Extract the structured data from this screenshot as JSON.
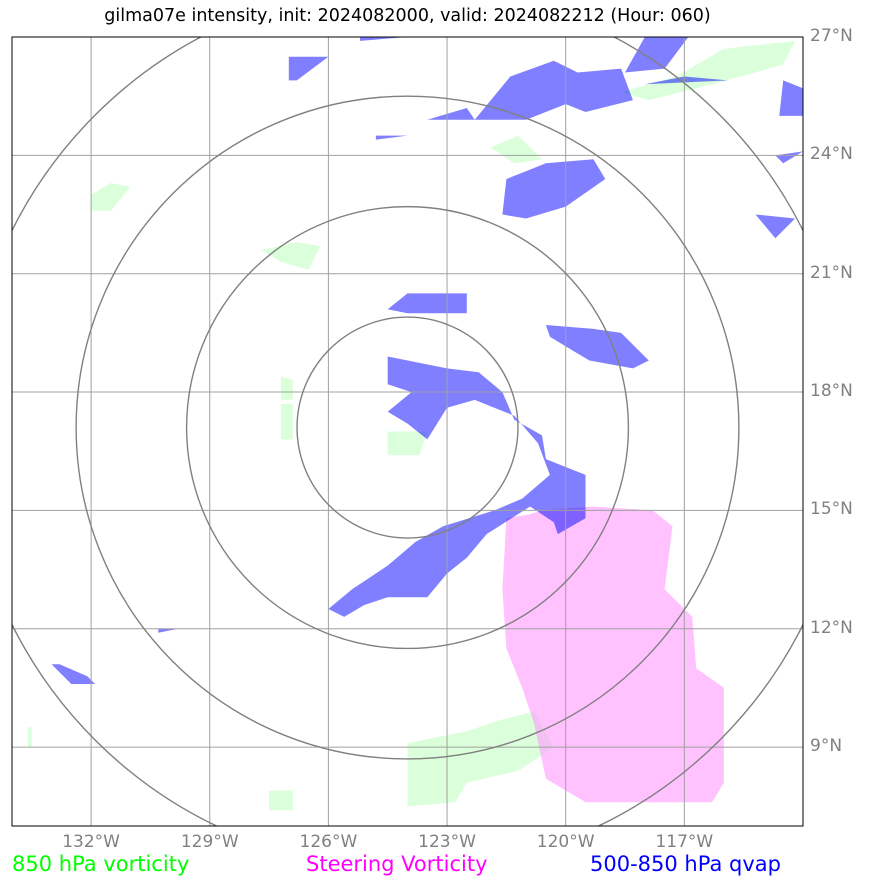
{
  "title": "gilma07e intensity, init: 2024082000, valid: 2024082212 (Hour: 060)",
  "map": {
    "lon_min": -134,
    "lon_max": -114,
    "lat_min": 7,
    "lat_max": 27,
    "lat_ticks": [
      {
        "value": 27,
        "label": "27°N"
      },
      {
        "value": 24,
        "label": "24°N"
      },
      {
        "value": 21,
        "label": "21°N"
      },
      {
        "value": 18,
        "label": "18°N"
      },
      {
        "value": 15,
        "label": "15°N"
      },
      {
        "value": 12,
        "label": "12°N"
      },
      {
        "value": 9,
        "label": "9°N"
      }
    ],
    "lon_ticks": [
      {
        "value": -132,
        "label": "132°W"
      },
      {
        "value": -129,
        "label": "129°W"
      },
      {
        "value": -126,
        "label": "126°W"
      },
      {
        "value": -123,
        "label": "123°W"
      },
      {
        "value": -120,
        "label": "120°W"
      },
      {
        "value": -117,
        "label": "117°W"
      }
    ],
    "grid": true,
    "range_rings": {
      "center_lon": -124.0,
      "center_lat": 17.1,
      "radii_deg": [
        2.8,
        5.6,
        8.4,
        11.2
      ]
    },
    "colors": {
      "vort850": "#ccffcc",
      "steering": "#ff99ff",
      "qvap": "#0000ff",
      "grid": "#a0a0a0",
      "rings": "#808080"
    },
    "fields": {
      "vort850": [
        [
          [
            -117.2,
            26.0
          ],
          [
            -116.0,
            26.7
          ],
          [
            -114.2,
            26.9
          ],
          [
            -114.5,
            26.3
          ],
          [
            -116.3,
            25.8
          ],
          [
            -117.9,
            25.4
          ],
          [
            -118.6,
            25.6
          ]
        ],
        [
          [
            -121.2,
            24.5
          ],
          [
            -120.6,
            23.9
          ],
          [
            -121.3,
            23.8
          ],
          [
            -121.9,
            24.2
          ]
        ],
        [
          [
            -124.0,
            9.1
          ],
          [
            -122.5,
            9.4
          ],
          [
            -121.6,
            9.7
          ],
          [
            -120.8,
            9.9
          ],
          [
            -120.3,
            9.0
          ],
          [
            -121.2,
            8.4
          ],
          [
            -122.5,
            8.1
          ],
          [
            -122.8,
            7.6
          ],
          [
            -124.0,
            7.5
          ]
        ],
        [
          [
            -127.2,
            17.7
          ],
          [
            -126.9,
            17.7
          ],
          [
            -126.9,
            16.8
          ],
          [
            -127.2,
            16.8
          ]
        ],
        [
          [
            -127.2,
            18.4
          ],
          [
            -126.9,
            18.3
          ],
          [
            -126.9,
            17.8
          ],
          [
            -127.2,
            17.8
          ]
        ],
        [
          [
            -124.5,
            17.0
          ],
          [
            -123.5,
            17.0
          ],
          [
            -123.7,
            16.4
          ],
          [
            -124.5,
            16.4
          ]
        ],
        [
          [
            -127.7,
            21.6
          ],
          [
            -126.8,
            21.8
          ],
          [
            -126.2,
            21.7
          ],
          [
            -126.5,
            21.1
          ],
          [
            -127.2,
            21.3
          ]
        ],
        [
          [
            -132.0,
            23.0
          ],
          [
            -131.5,
            23.3
          ],
          [
            -131.0,
            23.2
          ],
          [
            -131.5,
            22.6
          ],
          [
            -132.0,
            22.6
          ]
        ],
        [
          [
            -127.5,
            7.9
          ],
          [
            -126.9,
            7.9
          ],
          [
            -126.9,
            7.4
          ],
          [
            -127.5,
            7.4
          ]
        ],
        [
          [
            -133.6,
            9.5
          ],
          [
            -133.5,
            9.5
          ],
          [
            -133.5,
            9.0
          ],
          [
            -133.6,
            9.0
          ]
        ]
      ],
      "steering": [
        [
          [
            -121.5,
            14.8
          ],
          [
            -120.9,
            14.9
          ],
          [
            -120.6,
            15.0
          ],
          [
            -119.3,
            15.1
          ],
          [
            -117.8,
            15.0
          ],
          [
            -117.3,
            14.6
          ],
          [
            -117.5,
            13.0
          ],
          [
            -116.8,
            12.3
          ],
          [
            -116.7,
            11.0
          ],
          [
            -116.0,
            10.5
          ],
          [
            -116.0,
            8.1
          ],
          [
            -116.3,
            7.6
          ],
          [
            -119.5,
            7.6
          ],
          [
            -120.5,
            8.2
          ],
          [
            -120.8,
            9.6
          ],
          [
            -121.1,
            10.5
          ],
          [
            -121.5,
            11.5
          ],
          [
            -121.6,
            13.0
          ]
        ]
      ],
      "qvap": [
        [
          [
            -123.0,
            18.6
          ],
          [
            -122.2,
            18.5
          ],
          [
            -121.6,
            18.0
          ],
          [
            -121.3,
            17.3
          ],
          [
            -120.6,
            16.9
          ],
          [
            -120.5,
            16.3
          ],
          [
            -119.5,
            15.9
          ],
          [
            -119.5,
            14.8
          ],
          [
            -120.2,
            14.4
          ],
          [
            -120.3,
            14.7
          ],
          [
            -120.9,
            15.1
          ],
          [
            -122.0,
            14.4
          ],
          [
            -122.5,
            13.8
          ],
          [
            -123.0,
            13.4
          ],
          [
            -123.5,
            12.8
          ],
          [
            -124.5,
            12.8
          ],
          [
            -125.1,
            12.6
          ],
          [
            -125.6,
            12.3
          ],
          [
            -126.0,
            12.5
          ],
          [
            -125.4,
            13.0
          ],
          [
            -124.5,
            13.6
          ],
          [
            -123.8,
            14.2
          ],
          [
            -123.1,
            14.6
          ],
          [
            -121.8,
            15.0
          ],
          [
            -121.1,
            15.3
          ],
          [
            -120.4,
            15.9
          ],
          [
            -120.7,
            16.7
          ],
          [
            -121.3,
            17.4
          ],
          [
            -122.3,
            17.8
          ],
          [
            -123.0,
            17.6
          ],
          [
            -123.5,
            16.8
          ],
          [
            -124.0,
            17.2
          ],
          [
            -124.5,
            17.5
          ],
          [
            -123.9,
            18.0
          ],
          [
            -124.5,
            18.2
          ],
          [
            -124.5,
            18.9
          ]
        ],
        [
          [
            -124.0,
            20.5
          ],
          [
            -122.5,
            20.5
          ],
          [
            -122.5,
            20.0
          ],
          [
            -124.0,
            20.0
          ],
          [
            -124.5,
            20.1
          ]
        ],
        [
          [
            -120.5,
            19.7
          ],
          [
            -119.3,
            19.6
          ],
          [
            -118.6,
            19.5
          ],
          [
            -117.9,
            18.8
          ],
          [
            -118.3,
            18.6
          ],
          [
            -119.4,
            18.8
          ],
          [
            -119.9,
            19.1
          ],
          [
            -120.4,
            19.4
          ]
        ],
        [
          [
            -121.5,
            23.4
          ],
          [
            -120.5,
            23.8
          ],
          [
            -119.3,
            23.9
          ],
          [
            -119.0,
            23.4
          ],
          [
            -120.0,
            22.7
          ],
          [
            -121.0,
            22.4
          ],
          [
            -121.6,
            22.5
          ]
        ],
        [
          [
            -122.5,
            25.2
          ],
          [
            -122.3,
            24.9
          ],
          [
            -121.4,
            26.0
          ],
          [
            -120.3,
            26.4
          ],
          [
            -119.7,
            26.1
          ],
          [
            -118.6,
            26.2
          ],
          [
            -118.3,
            25.4
          ],
          [
            -119.5,
            25.1
          ],
          [
            -120.0,
            25.3
          ],
          [
            -121.0,
            24.9
          ],
          [
            -123.5,
            24.9
          ]
        ],
        [
          [
            -118.0,
            27.0
          ],
          [
            -116.9,
            27.0
          ],
          [
            -117.5,
            26.2
          ],
          [
            -118.5,
            26.1
          ]
        ],
        [
          [
            -117.0,
            26.0
          ],
          [
            -115.9,
            25.9
          ],
          [
            -118.0,
            25.8
          ]
        ],
        [
          [
            -115.2,
            22.5
          ],
          [
            -114.2,
            22.4
          ],
          [
            -114.7,
            21.9
          ]
        ],
        [
          [
            -127.0,
            26.5
          ],
          [
            -126.0,
            26.5
          ],
          [
            -126.8,
            25.9
          ],
          [
            -127.0,
            25.9
          ]
        ],
        [
          [
            -132.8,
            11.1
          ],
          [
            -132.1,
            10.8
          ],
          [
            -131.9,
            10.6
          ],
          [
            -132.5,
            10.6
          ],
          [
            -133.0,
            11.1
          ]
        ],
        [
          [
            -114.7,
            24.0
          ],
          [
            -114.0,
            24.1
          ],
          [
            -114.5,
            23.8
          ]
        ],
        [
          [
            -114.5,
            25.9
          ],
          [
            -114.0,
            25.7
          ],
          [
            -114.0,
            25.0
          ],
          [
            -114.6,
            25.0
          ]
        ],
        [
          [
            -130.3,
            12.0
          ],
          [
            -129.8,
            12.0
          ],
          [
            -130.3,
            11.9
          ]
        ],
        [
          [
            -124.8,
            24.5
          ],
          [
            -124.0,
            24.5
          ],
          [
            -124.8,
            24.4
          ]
        ],
        [
          [
            -125.2,
            27.0
          ],
          [
            -124.0,
            27.0
          ],
          [
            -125.2,
            26.9
          ]
        ]
      ]
    }
  },
  "legend": {
    "vort850": {
      "label": "850 hPa vorticity",
      "color": "#00ff00"
    },
    "steering": {
      "label": "Steering Vorticity",
      "color": "#ff00ff"
    },
    "qvap": {
      "label": "500-850 hPa qvap",
      "color": "#0000ff"
    }
  }
}
